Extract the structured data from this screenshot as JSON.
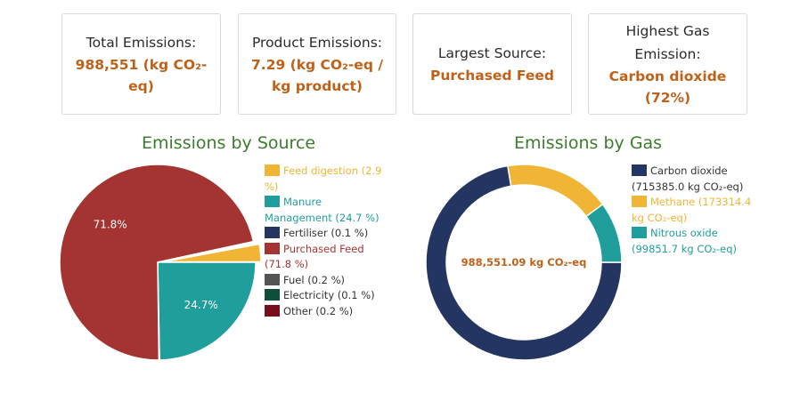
{
  "cards": [
    {
      "label": "Total Emissions:",
      "value": "988,551 (kg CO₂-eq)"
    },
    {
      "label": "Product Emissions:",
      "value": "7.29 (kg CO₂-eq / kg product)"
    },
    {
      "label": "Largest Source:",
      "value": "Purchased Feed"
    },
    {
      "label": "Highest Gas Emission:",
      "value": "Carbon dioxide (72%)"
    }
  ],
  "chart_data": [
    {
      "type": "pie",
      "title": "Emissions by Source",
      "legend_position": "right",
      "slices": [
        {
          "label": "Feed digestion (2.9 %)",
          "value": 2.9,
          "color": "#f0b534"
        },
        {
          "label": "Manure Management (24.7 %)",
          "value": 24.7,
          "color": "#1f9e9c"
        },
        {
          "label": "Fertiliser (0.1 %)",
          "value": 0.1,
          "color": "#243560"
        },
        {
          "label": "Purchased Feed (71.8 %)",
          "value": 71.8,
          "color": "#a33431"
        },
        {
          "label": "Fuel (0.2 %)",
          "value": 0.2,
          "color": "#545454"
        },
        {
          "label": "Electricity (0.1 %)",
          "value": 0.1,
          "color": "#0d4f3a"
        },
        {
          "label": "Other (0.2 %)",
          "value": 0.2,
          "color": "#7a0d1c"
        }
      ],
      "data_labels": {
        "Manure Management (24.7 %)": "24.7%",
        "Purchased Feed (71.8 %)": "71.8%"
      }
    },
    {
      "type": "pie",
      "subtype": "donut",
      "title": "Emissions by Gas",
      "legend_position": "right",
      "center_label": "988,551.09 kg CO₂-eq",
      "slices": [
        {
          "label": "Carbon dioxide (715385.0 kg CO₂-eq)",
          "value": 715385.0,
          "color": "#253562"
        },
        {
          "label": "Methane (173314.4 kg CO₂-eq)",
          "value": 173314.4,
          "color": "#f0b534"
        },
        {
          "label": "Nitrous oxide (99851.7 kg CO₂-eq)",
          "value": 99851.7,
          "color": "#1f9e9c"
        }
      ]
    }
  ],
  "colors": {
    "accent": "#c0611a",
    "title": "#3b7d2e"
  }
}
